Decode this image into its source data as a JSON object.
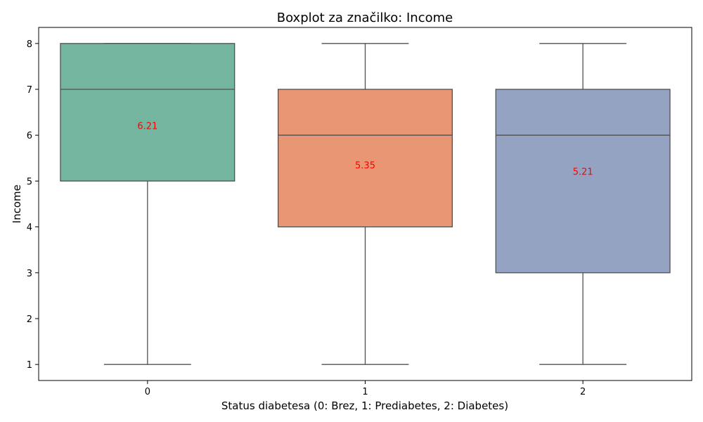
{
  "chart_data": {
    "type": "boxplot",
    "title": "Boxplot za značilko: Income",
    "xlabel": "Status diabetesa (0: Brez, 1: Prediabetes, 2: Diabetes)",
    "ylabel": "Income",
    "ylim": [
      0.65,
      8.35
    ],
    "yticks": [
      1,
      2,
      3,
      4,
      5,
      6,
      7,
      8
    ],
    "categories": [
      "0",
      "1",
      "2"
    ],
    "boxes": [
      {
        "category": "0",
        "whisker_low": 1,
        "q1": 5,
        "median": 7,
        "q3": 8,
        "whisker_high": 8,
        "mean": 6.21,
        "mean_label": "6.21",
        "color": "#73b59f"
      },
      {
        "category": "1",
        "whisker_low": 1,
        "q1": 4,
        "median": 6,
        "q3": 7,
        "whisker_high": 8,
        "mean": 5.35,
        "mean_label": "5.35",
        "color": "#e99675"
      },
      {
        "category": "2",
        "whisker_low": 1,
        "q1": 3,
        "median": 6,
        "q3": 7,
        "whisker_high": 8,
        "mean": 5.21,
        "mean_label": "5.21",
        "color": "#95a3c3"
      }
    ],
    "mean_label_color": "#ff0000",
    "line_color": "#505050",
    "grid": false,
    "legend": "none"
  }
}
